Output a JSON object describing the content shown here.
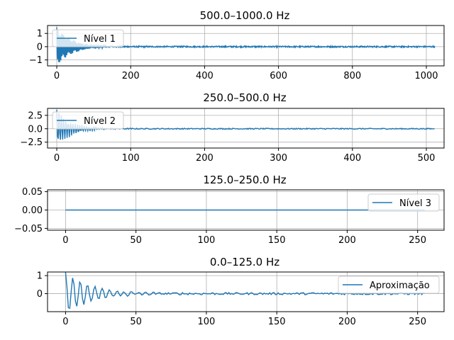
{
  "line_color": "#1f77b4",
  "chart_data": [
    {
      "type": "line",
      "title": "500.0–1000.0 Hz",
      "xlabel": "",
      "ylabel": "",
      "xlim": [
        -25,
        1048
      ],
      "ylim": [
        -1.45,
        1.6
      ],
      "xticks": [
        0,
        200,
        400,
        600,
        800,
        1000
      ],
      "yticks": [
        -1,
        0,
        1
      ],
      "grid": true,
      "legend_position": "upper-left",
      "series": [
        {
          "name": "Nível 1",
          "n": 1024,
          "amp": 1.45,
          "decay": 40,
          "period": 3.2,
          "noise": 0.05
        }
      ]
    },
    {
      "type": "line",
      "title": "250.0–500.0 Hz",
      "xlabel": "",
      "ylabel": "",
      "xlim": [
        -12.5,
        524
      ],
      "ylim": [
        -3.6,
        3.8
      ],
      "xticks": [
        0,
        100,
        200,
        300,
        400,
        500
      ],
      "yticks": [
        -2.5,
        0.0,
        2.5
      ],
      "ytick_labels": [
        "−2.5",
        "0.0",
        "2.5"
      ],
      "grid": true,
      "legend_position": "upper-left",
      "series": [
        {
          "name": "Nível 2",
          "n": 512,
          "amp": 3.5,
          "decay": 20,
          "period": 3.1,
          "noise": 0.1
        }
      ]
    },
    {
      "type": "line",
      "title": "125.0–250.0 Hz",
      "xlabel": "",
      "ylabel": "",
      "xlim": [
        -12.8,
        268.8
      ],
      "ylim": [
        -0.055,
        0.055
      ],
      "xticks": [
        0,
        50,
        100,
        150,
        200,
        250
      ],
      "yticks": [
        -0.05,
        0.0,
        0.05
      ],
      "ytick_labels": [
        "−0.05",
        "0.00",
        "0.05"
      ],
      "grid": true,
      "legend_position": "upper-right",
      "series": [
        {
          "name": "Nível 3",
          "n": 256,
          "amp": 0,
          "decay": 1,
          "period": 1,
          "noise": 0
        }
      ]
    },
    {
      "type": "line",
      "title": "0.0–125.0 Hz",
      "xlabel": "",
      "ylabel": "",
      "xlim": [
        -12.8,
        268.8
      ],
      "ylim": [
        -1.0,
        1.2
      ],
      "xticks": [
        0,
        50,
        100,
        150,
        200,
        250
      ],
      "yticks": [
        0,
        1
      ],
      "grid": true,
      "legend_position": "upper-right",
      "series": [
        {
          "name": "Aproximação",
          "n": 256,
          "amp": 1.15,
          "decay": 18,
          "period": 5.2,
          "noise": 0.06
        }
      ]
    }
  ]
}
